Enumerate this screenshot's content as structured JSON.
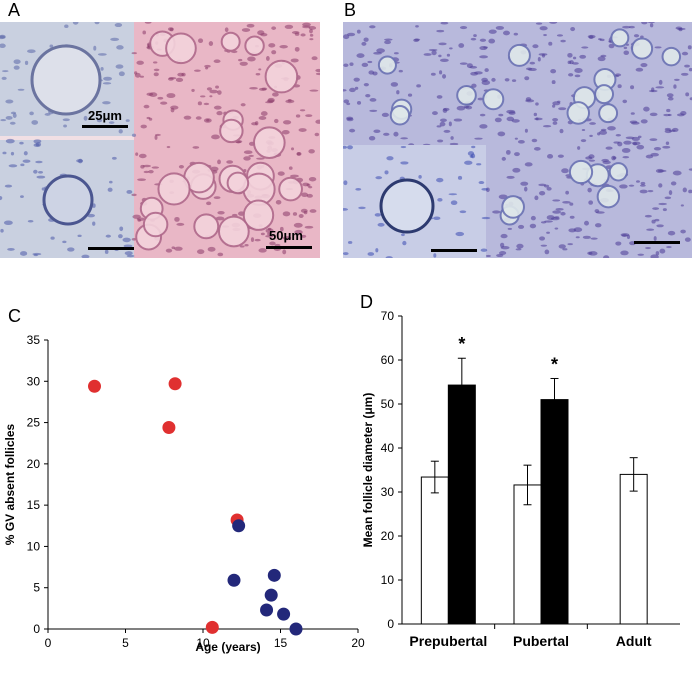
{
  "panels": {
    "a": {
      "label": "A",
      "scale_top": "25μm",
      "scale_main": "50μm",
      "tissue_color": "#e9b7c6",
      "inset_color": "#c9d0e0"
    },
    "b": {
      "label": "B",
      "tissue_color": "#b8b9dc",
      "inset_color": "#c8cde6"
    },
    "c": {
      "label": "C"
    },
    "d": {
      "label": "D"
    }
  },
  "chart_data": [
    {
      "type": "scatter",
      "title": "",
      "xlabel": "Age (years)",
      "ylabel": "% GV absent follicles",
      "xlim": [
        0,
        20
      ],
      "ylim": [
        0,
        35
      ],
      "xticks": [
        0,
        5,
        10,
        15,
        20
      ],
      "yticks": [
        0,
        5,
        10,
        15,
        20,
        25,
        30,
        35
      ],
      "grid": false,
      "series": [
        {
          "color": "#e03030",
          "points": [
            {
              "x": 3.0,
              "y": 29.4
            },
            {
              "x": 7.8,
              "y": 24.4
            },
            {
              "x": 8.2,
              "y": 29.7
            },
            {
              "x": 10.6,
              "y": 0.2
            },
            {
              "x": 12.2,
              "y": 13.2
            }
          ]
        },
        {
          "color": "#23287a",
          "points": [
            {
              "x": 12.0,
              "y": 5.9
            },
            {
              "x": 12.3,
              "y": 12.5
            },
            {
              "x": 14.1,
              "y": 2.3
            },
            {
              "x": 14.4,
              "y": 4.1
            },
            {
              "x": 14.6,
              "y": 6.5
            },
            {
              "x": 15.2,
              "y": 1.8
            },
            {
              "x": 16.0,
              "y": 0.0
            }
          ]
        }
      ]
    },
    {
      "type": "bar",
      "title": "",
      "xlabel": "",
      "ylabel": "Mean follicle diameter (μm)",
      "ylim": [
        0,
        70
      ],
      "yticks": [
        0,
        10,
        20,
        30,
        40,
        50,
        60,
        70
      ],
      "grid": false,
      "categories": [
        "Prepubertal",
        "Pubertal",
        "Adult"
      ],
      "series": [
        {
          "color": "#ffffff",
          "values": [
            33.4,
            31.6,
            34.0
          ],
          "errors": [
            3.6,
            4.5,
            3.8
          ]
        },
        {
          "color": "#000000",
          "values": [
            54.3,
            51.0,
            null
          ],
          "errors": [
            6.1,
            4.8,
            null
          ]
        }
      ],
      "annotations": [
        "*",
        "*",
        ""
      ]
    }
  ]
}
